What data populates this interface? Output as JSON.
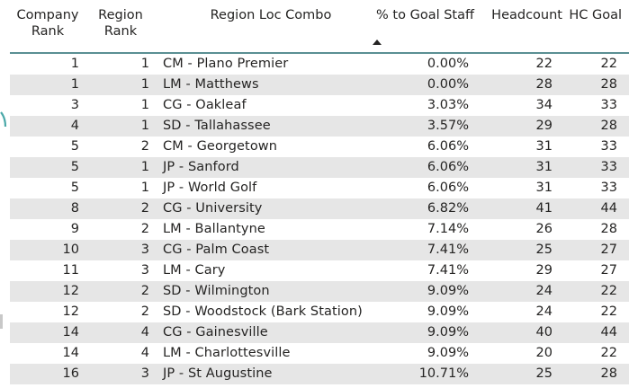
{
  "table": {
    "headers": {
      "company_rank": "Company Rank",
      "region_rank": "Region Rank",
      "region_loc_combo": "Region Loc Combo",
      "pct_to_goal_staff": "% to Goal Staff",
      "headcount": "Headcount",
      "hc_goal": "HC Goal"
    },
    "rows": [
      {
        "company_rank": "1",
        "region_rank": "1",
        "combo": "CM - Plano Premier",
        "pct": "0.00%",
        "headcount": "22",
        "hc_goal": "22"
      },
      {
        "company_rank": "1",
        "region_rank": "1",
        "combo": "LM - Matthews",
        "pct": "0.00%",
        "headcount": "28",
        "hc_goal": "28"
      },
      {
        "company_rank": "3",
        "region_rank": "1",
        "combo": "CG - Oakleaf",
        "pct": "3.03%",
        "headcount": "34",
        "hc_goal": "33"
      },
      {
        "company_rank": "4",
        "region_rank": "1",
        "combo": "SD - Tallahassee",
        "pct": "3.57%",
        "headcount": "29",
        "hc_goal": "28"
      },
      {
        "company_rank": "5",
        "region_rank": "2",
        "combo": "CM - Georgetown",
        "pct": "6.06%",
        "headcount": "31",
        "hc_goal": "33"
      },
      {
        "company_rank": "5",
        "region_rank": "1",
        "combo": "JP - Sanford",
        "pct": "6.06%",
        "headcount": "31",
        "hc_goal": "33"
      },
      {
        "company_rank": "5",
        "region_rank": "1",
        "combo": "JP - World Golf",
        "pct": "6.06%",
        "headcount": "31",
        "hc_goal": "33"
      },
      {
        "company_rank": "8",
        "region_rank": "2",
        "combo": "CG - University",
        "pct": "6.82%",
        "headcount": "41",
        "hc_goal": "44"
      },
      {
        "company_rank": "9",
        "region_rank": "2",
        "combo": "LM - Ballantyne",
        "pct": "7.14%",
        "headcount": "26",
        "hc_goal": "28"
      },
      {
        "company_rank": "10",
        "region_rank": "3",
        "combo": "CG - Palm Coast",
        "pct": "7.41%",
        "headcount": "25",
        "hc_goal": "27"
      },
      {
        "company_rank": "11",
        "region_rank": "3",
        "combo": "LM - Cary",
        "pct": "7.41%",
        "headcount": "29",
        "hc_goal": "27"
      },
      {
        "company_rank": "12",
        "region_rank": "2",
        "combo": "SD - Wilmington",
        "pct": "9.09%",
        "headcount": "24",
        "hc_goal": "22"
      },
      {
        "company_rank": "12",
        "region_rank": "2",
        "combo": "SD - Woodstock (Bark Station)",
        "pct": "9.09%",
        "headcount": "24",
        "hc_goal": "22"
      },
      {
        "company_rank": "14",
        "region_rank": "4",
        "combo": "CG - Gainesville",
        "pct": "9.09%",
        "headcount": "40",
        "hc_goal": "44"
      },
      {
        "company_rank": "14",
        "region_rank": "4",
        "combo": "LM - Charlottesville",
        "pct": "9.09%",
        "headcount": "20",
        "hc_goal": "22"
      },
      {
        "company_rank": "16",
        "region_rank": "3",
        "combo": "JP - St Augustine",
        "pct": "10.71%",
        "headcount": "25",
        "hc_goal": "28"
      }
    ],
    "sort": {
      "column": "pct_to_goal_staff",
      "direction": "ascending",
      "icon": "sort-ascending-icon"
    }
  },
  "colors": {
    "header_rule": "#5a8f93",
    "row_alt": "#e6e6e6",
    "text": "#252423",
    "edge_mark": "#4aa8a8"
  }
}
